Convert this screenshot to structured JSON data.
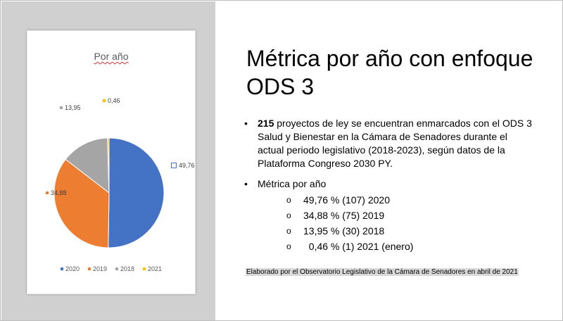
{
  "slide": {
    "title": "Métrica por año con enfoque ODS 3",
    "bullets": [
      {
        "bold": "215",
        "text": " proyectos de ley se encuentran enmarcados con el ODS 3 Salud y Bienestar en la Cámara de Senadores durante el actual periodo legislativo (2018-2023), según datos de la Plataforma Congreso 2030 PY."
      },
      {
        "text": "Métrica por año",
        "subitems": [
          {
            "marker": "o",
            "text": "49,76 % (107) 2020"
          },
          {
            "marker": "o",
            "text": "34,88 % (75) 2019"
          },
          {
            "marker": "o",
            "text": "13,95 % (30) 2018"
          },
          {
            "marker": "o",
            "text": "  0,46 % (1) 2021 (enero)"
          }
        ]
      }
    ],
    "footer": "Elaborado por el Observatorio Legislativo de la Cámara de Senadores en abril de 2021"
  },
  "chart_data": {
    "type": "pie",
    "title": "Por año",
    "categories": [
      "2020",
      "2019",
      "2018",
      "2021"
    ],
    "values": [
      49.76,
      34.88,
      13.95,
      0.46
    ],
    "labels": [
      "49,76",
      "34,88",
      "13,95",
      "0,46"
    ],
    "colors": [
      "#4472c4",
      "#ed7d31",
      "#a5a5a5",
      "#ffc000"
    ],
    "legend": "bottom"
  }
}
